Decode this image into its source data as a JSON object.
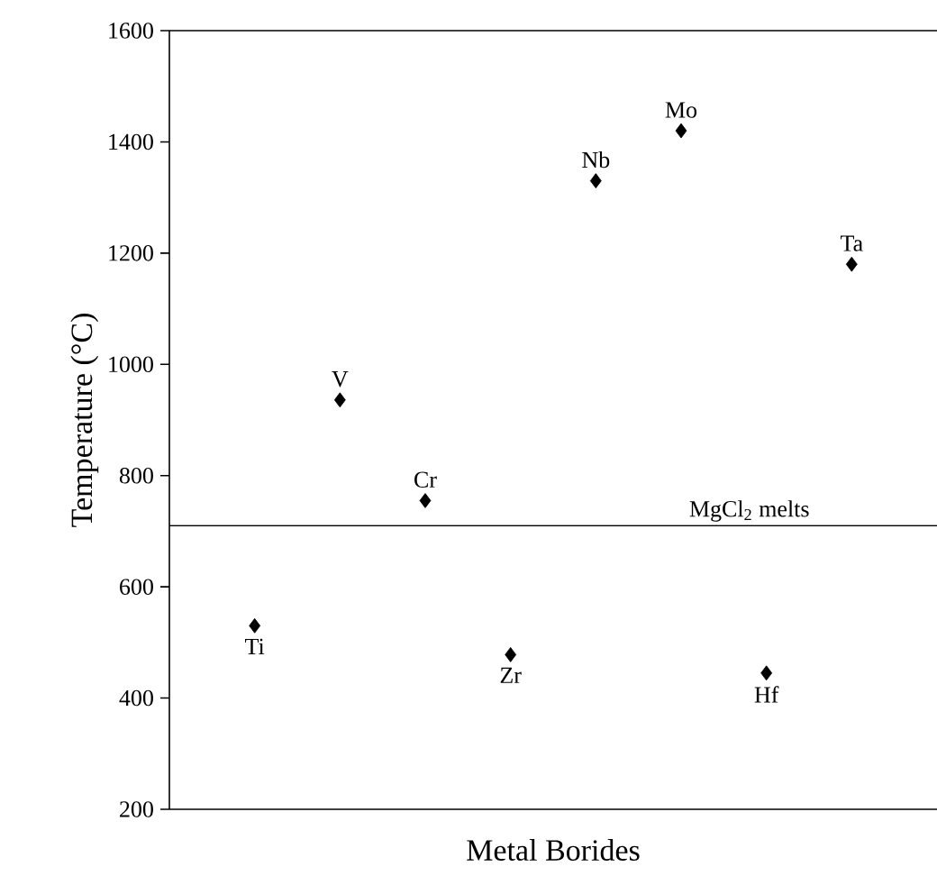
{
  "chart_data": {
    "type": "scatter",
    "xlabel": "Metal Borides",
    "ylabel": "Temperature (°C)",
    "categories": [
      null,
      null,
      null,
      null,
      null,
      null,
      null,
      null
    ],
    "values": [
      530,
      936,
      755,
      478,
      1330,
      1420,
      445,
      1180
    ],
    "value_labels": [
      "Ti",
      "V",
      "Cr",
      "Zr",
      "Nb",
      "Mo",
      "Hf",
      "Ta"
    ],
    "color": "#000000",
    "marker": "diamond",
    "ylim": [
      200,
      1600
    ],
    "yticks": [
      200,
      400,
      600,
      800,
      1000,
      1200,
      1400,
      1600
    ],
    "tick_labels": "y",
    "ref_lines": [
      {
        "axis": "y",
        "value": 710,
        "label": "MgCl$_{2}$ melts"
      }
    ]
  }
}
